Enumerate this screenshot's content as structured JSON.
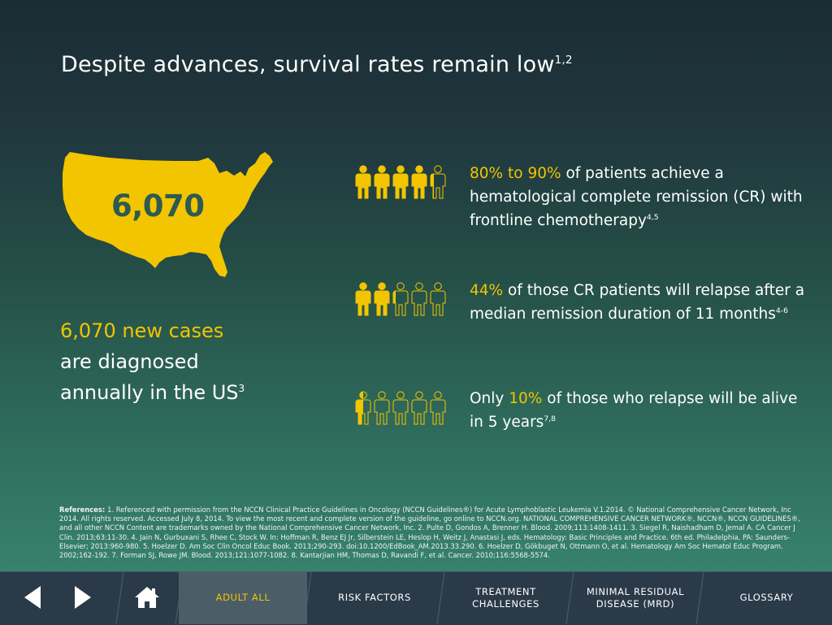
{
  "title": {
    "text": "Despite advances, survival rates remain low",
    "sup": "1,2"
  },
  "map": {
    "number": "6,070"
  },
  "cases": {
    "line1": "6,070 new cases",
    "line2": "are diagnosed",
    "line3": "annually in the US",
    "sup": "3"
  },
  "stats": [
    {
      "highlight": "80% to 90%",
      "text": " of patients achieve a hematological complete remission (CR) with frontline chemotherapy",
      "sup": "4,5",
      "fraction": 0.85
    },
    {
      "highlight": "44%",
      "text": " of those CR patients will relapse after a median remission duration of 11 months",
      "sup": "4-6",
      "fraction": 0.44
    },
    {
      "prefix": "Only ",
      "highlight": "10%",
      "text": " of those who relapse will be alive in 5 years",
      "sup": "7,8",
      "fraction": 0.1
    }
  ],
  "references": {
    "label": "References: ",
    "text": "1. Referenced with permission from the NCCN Clinical Practice Guidelines in Oncology (NCCN Guidelines®) for Acute Lymphoblastic Leukemia V.1.2014. © National Comprehensive Cancer Network, Inc 2014. All rights reserved. Accessed July 8, 2014. To view the most recent and complete version of the guideline, go online to NCCN.org. NATIONAL COMPREHENSIVE CANCER NETWORK®, NCCN®, NCCN GUIDELINES®, and all other NCCN Content are trademarks owned by the National Comprehensive Cancer Network, Inc. 2. Pulte D, Gondos A, Brenner H. Blood. 2009;113:1408-1411. 3. Siegel R, Naishadham D, Jemal A. CA Cancer J Clin. 2013;63:11-30. 4. Jain N, Gurbuxani S, Rhee C, Stock W. In: Hoffman R, Benz EJ Jr, Silberstein LE, Heslop H, Weitz J, Anastasi J, eds. Hematology: Basic Principles and Practice. 6th ed. Philadelphia, PA: Saunders-Elsevier; 2013:960-980. 5. Hoelzer D. Am Soc Clin Oncol Educ Book. 2013;290-293. doi:10.1200/EdBook_AM.2013.33.290. 6. Hoelzer D, Gökbuget N, Ottmann O, et al. Hematology Am Soc Hematol Educ Program. 2002;162-192. 7. Forman SJ, Rowe JM. Blood. 2013;121:1077-1082. 8. Kantarjian HM, Thomas D, Ravandi F, et al. Cancer. 2010;116:5568-5574."
  },
  "nav": {
    "tabs": [
      {
        "label": "ADULT ALL",
        "active": true
      },
      {
        "label": "RISK FACTORS"
      },
      {
        "label": "TREATMENT\nCHALLENGES"
      },
      {
        "label": "MINIMAL RESIDUAL\nDISEASE (MRD)"
      },
      {
        "label": "GLOSSARY"
      }
    ],
    "icons": {
      "back": "back-arrow-icon",
      "forward": "forward-arrow-icon",
      "home": "home-icon"
    }
  },
  "colors": {
    "accent": "#f2c500",
    "nav_bg": "#2b3a49",
    "nav_active": "#4b5e68",
    "map_text": "#2e5a50"
  }
}
